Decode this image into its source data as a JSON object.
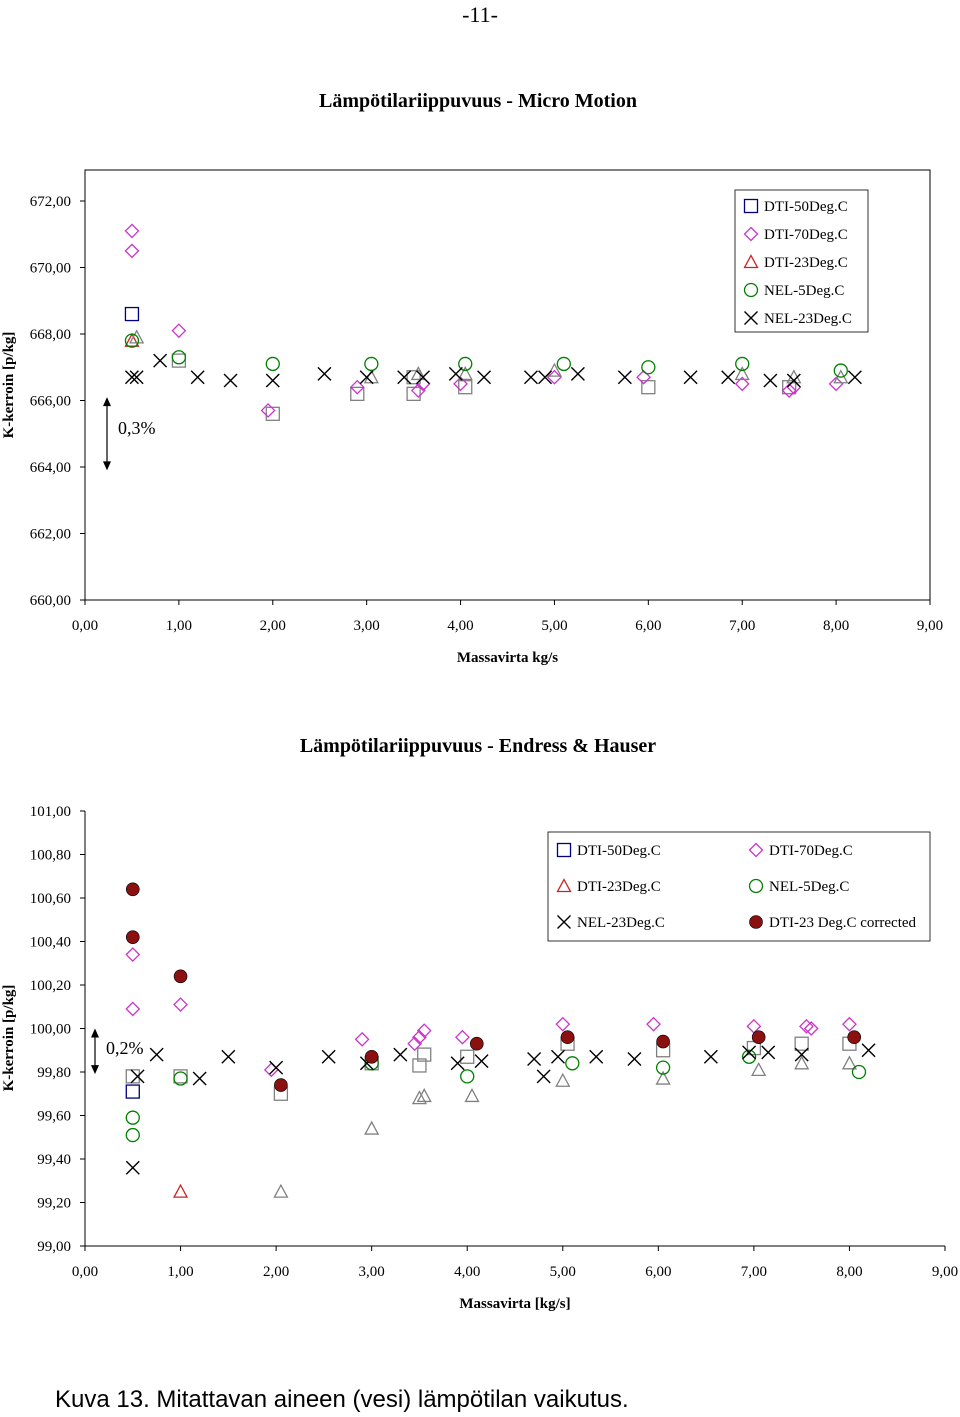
{
  "page_number": "-11-",
  "caption": "Kuva 13. Mitattavan aineen (vesi) lämpötilan vaikutus.",
  "chart_data": [
    {
      "type": "scatter",
      "title": "Lämpötilariippuvuus - Micro Motion",
      "xlabel": "Massavirta  kg/s",
      "ylabel": "K-kerroin  [p/kg]",
      "xlim": [
        0,
        9
      ],
      "ylim": [
        660,
        672
      ],
      "xticks": [
        "0,00",
        "1,00",
        "2,00",
        "3,00",
        "4,00",
        "5,00",
        "6,00",
        "7,00",
        "8,00",
        "9,00"
      ],
      "yticks": [
        "660,00",
        "662,00",
        "664,00",
        "666,00",
        "668,00",
        "670,00",
        "672,00"
      ],
      "annotation": "0,3%",
      "annotation_range": [
        663.9,
        666.1
      ],
      "legend_position": "top-right",
      "legend": [
        "DTI-50Deg.C",
        "DTI-70Deg.C",
        "DTI-23Deg.C",
        "NEL-5Deg.C",
        "NEL-23Deg.C"
      ],
      "series": [
        {
          "name": "DTI-50Deg.C",
          "marker": "square",
          "color": "#000080",
          "points": [
            [
              0.5,
              668.6
            ]
          ]
        },
        {
          "name": "DTI-50Deg.C (grey)",
          "marker": "square",
          "color": "#808080",
          "points": [
            [
              1.0,
              667.2
            ],
            [
              2.0,
              665.6
            ],
            [
              2.9,
              666.2
            ],
            [
              3.5,
              666.2
            ],
            [
              3.5,
              666.7
            ],
            [
              4.05,
              666.4
            ],
            [
              6.0,
              666.4
            ],
            [
              7.5,
              666.4
            ]
          ]
        },
        {
          "name": "DTI-70Deg.C",
          "marker": "diamond",
          "color": "#cc33cc",
          "points": [
            [
              0.5,
              671.1
            ],
            [
              0.5,
              670.5
            ],
            [
              1.0,
              668.1
            ],
            [
              1.95,
              665.7
            ],
            [
              2.9,
              666.4
            ],
            [
              3.55,
              666.3
            ],
            [
              3.6,
              666.5
            ],
            [
              4.0,
              666.5
            ],
            [
              5.0,
              666.7
            ],
            [
              5.95,
              666.7
            ],
            [
              7.0,
              666.5
            ],
            [
              7.5,
              666.3
            ],
            [
              7.55,
              666.4
            ],
            [
              8.0,
              666.5
            ]
          ]
        },
        {
          "name": "DTI-23Deg.C",
          "marker": "triangle",
          "color": "#cc2222",
          "points": [
            [
              0.5,
              667.8
            ]
          ]
        },
        {
          "name": "DTI-23Deg.C (grey)",
          "marker": "triangle",
          "color": "#808080",
          "points": [
            [
              0.55,
              667.9
            ],
            [
              3.05,
              666.7
            ],
            [
              3.55,
              666.8
            ],
            [
              4.05,
              666.8
            ],
            [
              5.0,
              666.9
            ],
            [
              7.0,
              666.8
            ],
            [
              7.55,
              666.7
            ],
            [
              8.05,
              666.7
            ]
          ]
        },
        {
          "name": "NEL-5Deg.C",
          "marker": "circle",
          "color": "#008000",
          "points": [
            [
              0.5,
              667.8
            ],
            [
              1.0,
              667.3
            ],
            [
              2.0,
              667.1
            ],
            [
              3.05,
              667.1
            ],
            [
              4.05,
              667.1
            ],
            [
              5.1,
              667.1
            ],
            [
              6.0,
              667.0
            ],
            [
              7.0,
              667.1
            ],
            [
              8.05,
              666.9
            ]
          ]
        },
        {
          "name": "NEL-23Deg.C",
          "marker": "x",
          "color": "#000000",
          "points": [
            [
              0.5,
              666.7
            ],
            [
              0.55,
              666.7
            ],
            [
              0.8,
              667.2
            ],
            [
              1.2,
              666.7
            ],
            [
              1.55,
              666.6
            ],
            [
              2.0,
              666.6
            ],
            [
              2.55,
              666.8
            ],
            [
              3.0,
              666.7
            ],
            [
              3.4,
              666.7
            ],
            [
              3.6,
              666.7
            ],
            [
              3.95,
              666.8
            ],
            [
              4.25,
              666.7
            ],
            [
              4.75,
              666.7
            ],
            [
              4.9,
              666.7
            ],
            [
              5.25,
              666.8
            ],
            [
              5.75,
              666.7
            ],
            [
              6.45,
              666.7
            ],
            [
              6.85,
              666.7
            ],
            [
              7.3,
              666.6
            ],
            [
              7.55,
              666.6
            ],
            [
              8.2,
              666.7
            ]
          ]
        }
      ]
    },
    {
      "type": "scatter",
      "title": "Lämpötilariippuvuus - Endress & Hauser",
      "xlabel": "Massavirta [kg/s]",
      "ylabel": "K-kerroin  [p/kg]",
      "xlim": [
        0,
        9
      ],
      "ylim": [
        99.0,
        101.0
      ],
      "xticks": [
        "0,00",
        "1,00",
        "2,00",
        "3,00",
        "4,00",
        "5,00",
        "6,00",
        "7,00",
        "8,00",
        "9,00"
      ],
      "yticks": [
        "99,00",
        "99,20",
        "99,40",
        "99,60",
        "99,80",
        "100,00",
        "100,20",
        "100,40",
        "100,60",
        "100,80",
        "101,00"
      ],
      "annotation": "0,2%",
      "annotation_range": [
        99.79,
        100.0
      ],
      "legend_position": "top-right",
      "legend": [
        "DTI-50Deg.C",
        "DTI-70Deg.C",
        "DTI-23Deg.C",
        "NEL-5Deg.C",
        "NEL-23Deg.C",
        "DTI-23 Deg.C corrected"
      ],
      "series": [
        {
          "name": "DTI-50Deg.C",
          "marker": "square",
          "color": "#000080",
          "points": [
            [
              0.5,
              99.71
            ]
          ]
        },
        {
          "name": "DTI-50Deg.C (grey)",
          "marker": "square",
          "color": "#808080",
          "points": [
            [
              0.5,
              99.78
            ],
            [
              1.0,
              99.78
            ],
            [
              2.05,
              99.7
            ],
            [
              3.0,
              99.84
            ],
            [
              3.5,
              99.83
            ],
            [
              3.55,
              99.88
            ],
            [
              4.0,
              99.87
            ],
            [
              5.05,
              99.93
            ],
            [
              6.05,
              99.9
            ],
            [
              7.0,
              99.91
            ],
            [
              7.5,
              99.93
            ],
            [
              8.0,
              99.93
            ]
          ]
        },
        {
          "name": "DTI-70Deg.C",
          "marker": "diamond",
          "color": "#cc33cc",
          "points": [
            [
              0.5,
              100.34
            ],
            [
              0.5,
              100.09
            ],
            [
              1.0,
              100.11
            ],
            [
              1.95,
              99.81
            ],
            [
              2.9,
              99.95
            ],
            [
              3.45,
              99.93
            ],
            [
              3.5,
              99.96
            ],
            [
              3.55,
              99.99
            ],
            [
              3.95,
              99.96
            ],
            [
              5.0,
              100.02
            ],
            [
              5.95,
              100.02
            ],
            [
              7.0,
              100.01
            ],
            [
              7.55,
              100.01
            ],
            [
              7.6,
              100.0
            ],
            [
              8.0,
              100.02
            ]
          ]
        },
        {
          "name": "DTI-23Deg.C",
          "marker": "triangle",
          "color": "#cc2222",
          "points": [
            [
              1.0,
              99.25
            ]
          ]
        },
        {
          "name": "DTI-23Deg.C (grey)",
          "marker": "triangle",
          "color": "#808080",
          "points": [
            [
              2.05,
              99.25
            ],
            [
              3.0,
              99.54
            ],
            [
              3.5,
              99.68
            ],
            [
              3.55,
              99.69
            ],
            [
              4.05,
              99.69
            ],
            [
              5.0,
              99.76
            ],
            [
              6.05,
              99.77
            ],
            [
              7.05,
              99.81
            ],
            [
              7.5,
              99.84
            ],
            [
              8.0,
              99.84
            ]
          ]
        },
        {
          "name": "NEL-5Deg.C",
          "marker": "circle",
          "color": "#008000",
          "points": [
            [
              0.5,
              99.59
            ],
            [
              0.5,
              99.51
            ],
            [
              1.0,
              99.77
            ],
            [
              3.0,
              99.84
            ],
            [
              4.0,
              99.78
            ],
            [
              5.1,
              99.84
            ],
            [
              6.05,
              99.82
            ],
            [
              6.95,
              99.87
            ],
            [
              8.1,
              99.8
            ]
          ]
        },
        {
          "name": "NEL-23Deg.C",
          "marker": "x",
          "color": "#000000",
          "points": [
            [
              0.5,
              99.36
            ],
            [
              0.55,
              99.78
            ],
            [
              0.75,
              99.88
            ],
            [
              1.2,
              99.77
            ],
            [
              1.5,
              99.87
            ],
            [
              2.0,
              99.82
            ],
            [
              2.55,
              99.87
            ],
            [
              2.95,
              99.84
            ],
            [
              3.3,
              99.88
            ],
            [
              3.9,
              99.84
            ],
            [
              4.15,
              99.85
            ],
            [
              4.7,
              99.86
            ],
            [
              4.8,
              99.78
            ],
            [
              4.95,
              99.87
            ],
            [
              5.35,
              99.87
            ],
            [
              5.75,
              99.86
            ],
            [
              6.55,
              99.87
            ],
            [
              6.95,
              99.89
            ],
            [
              7.15,
              99.89
            ],
            [
              7.5,
              99.88
            ],
            [
              8.2,
              99.9
            ]
          ]
        },
        {
          "name": "DTI-23 Deg.C corrected",
          "marker": "filled-circle",
          "color": "#8b1010",
          "points": [
            [
              0.5,
              100.64
            ],
            [
              0.5,
              100.42
            ],
            [
              1.0,
              100.24
            ],
            [
              2.05,
              99.74
            ],
            [
              3.0,
              99.87
            ],
            [
              4.1,
              99.93
            ],
            [
              5.05,
              99.96
            ],
            [
              6.05,
              99.94
            ],
            [
              7.05,
              99.96
            ],
            [
              8.05,
              99.96
            ]
          ]
        }
      ]
    }
  ]
}
